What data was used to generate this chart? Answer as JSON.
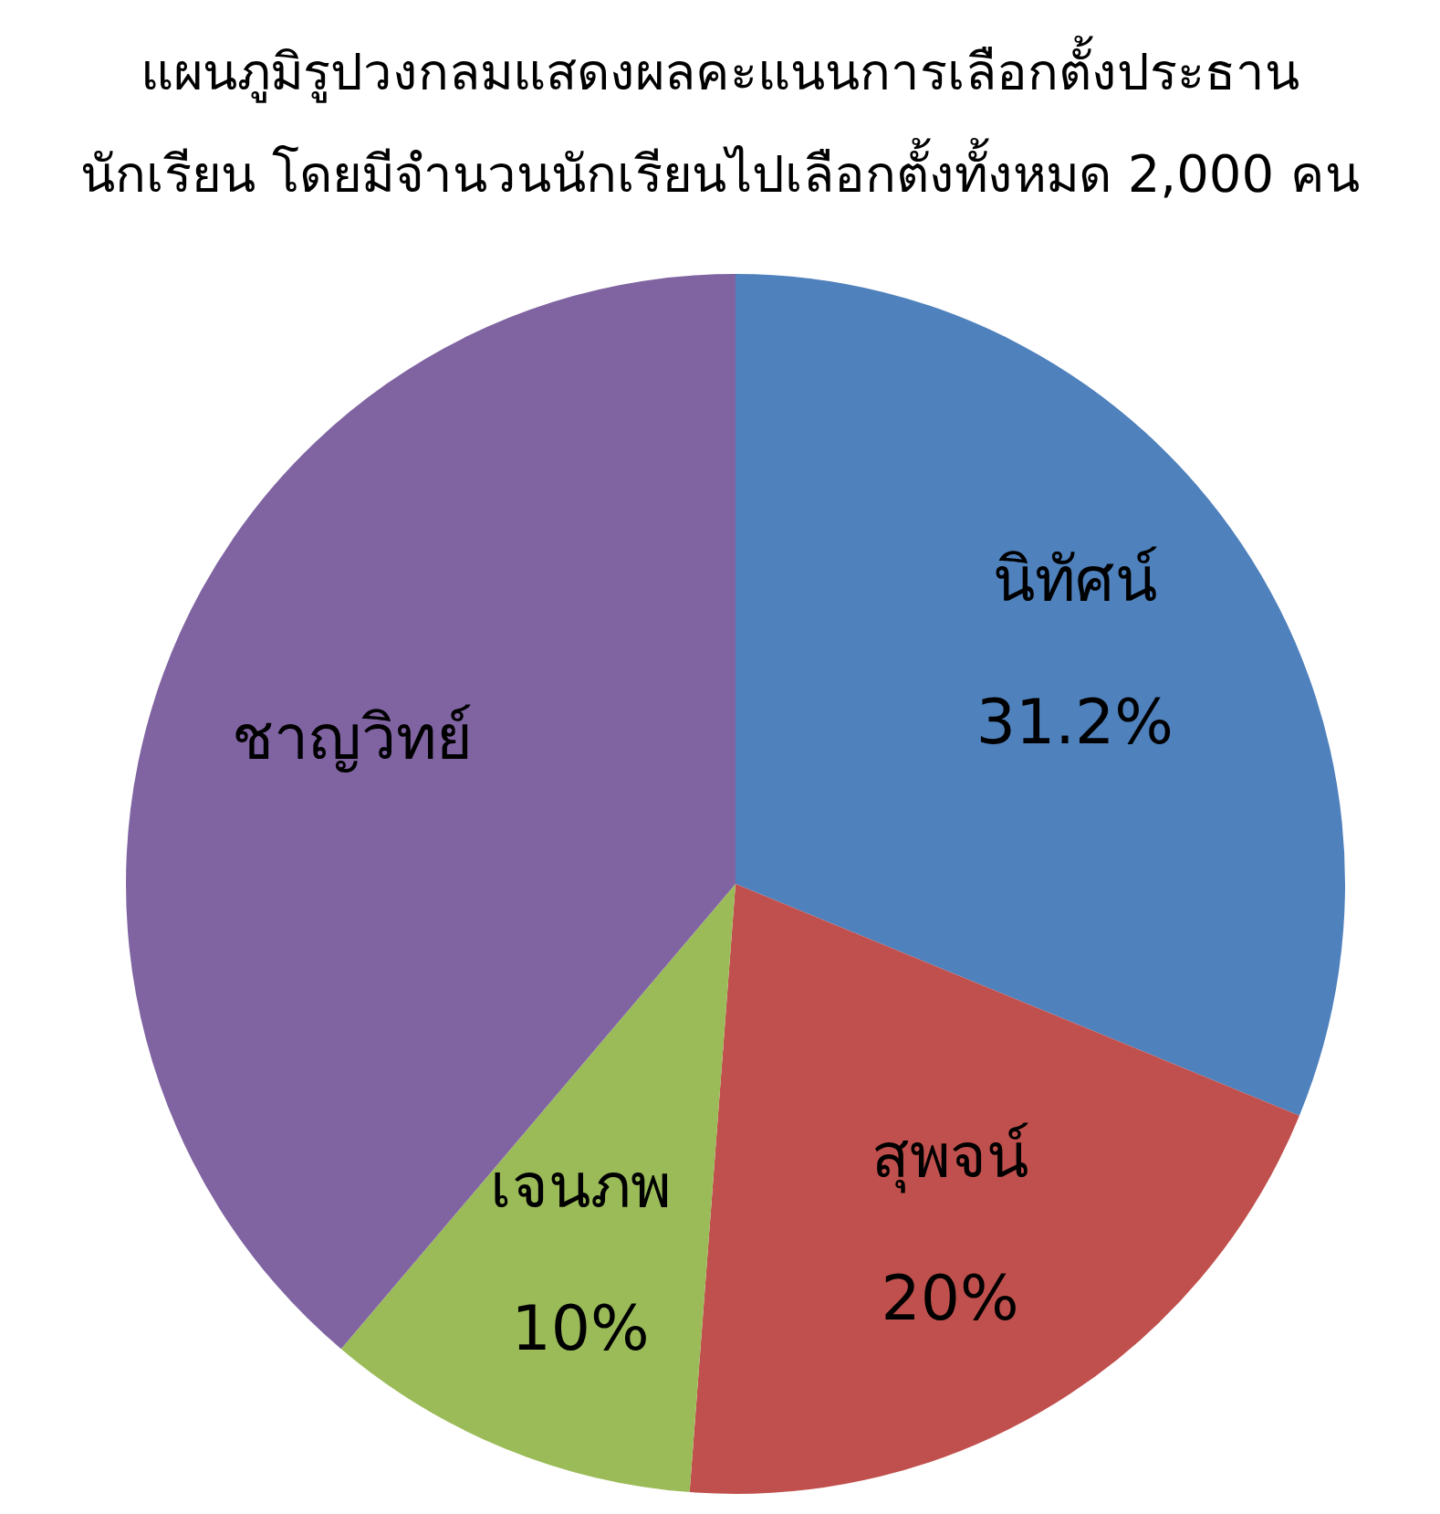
{
  "chart_data": {
    "type": "pie",
    "title": "แผนภูมิรูปวงกลมแสดงผลคะแนนการเลือกตั้งประธาน\nนักเรียน โดยมีจำนวนนักเรียนไปเลือกตั้งทั้งหมด 2,000 คน",
    "categories": [
      "นิทัศน์",
      "สุพจน์",
      "เจนภพ",
      "ชาญวิทย์"
    ],
    "values": [
      31.2,
      20,
      10,
      38.8
    ],
    "colors": [
      "#4f81bd",
      "#c0504d",
      "#9bbb59",
      "#8064a2"
    ],
    "value_labels": [
      "31.2%",
      "20%",
      "10%",
      null
    ]
  }
}
